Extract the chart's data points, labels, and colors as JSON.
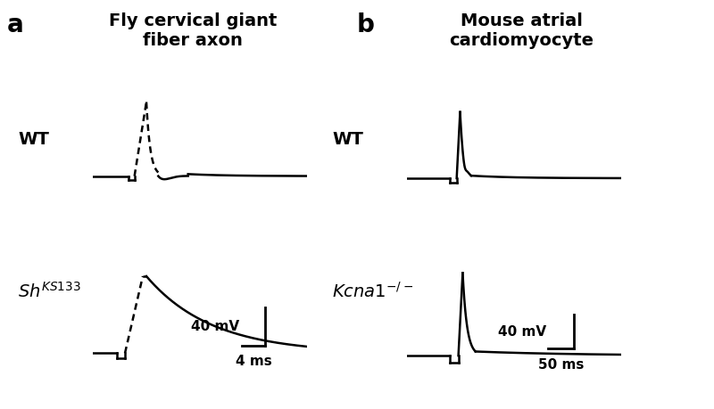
{
  "fig_width": 8.0,
  "fig_height": 4.59,
  "dpi": 100,
  "background_color": "#ffffff",
  "panel_a_title": "Fly cervical giant\nfiber axon",
  "panel_b_title": "Mouse atrial\ncardiomyocyte",
  "label_a": "a",
  "label_b": "b",
  "wt_label": "WT",
  "sh_label": "Sh",
  "sh_sup": "KS133",
  "kcna1_label": "Kcna1",
  "kcna1_sup": "−/−",
  "scalebar_a_mv": "40 mV",
  "scalebar_a_ms": "4 ms",
  "scalebar_b_mv": "40 mV",
  "scalebar_b_ms": "50 ms"
}
